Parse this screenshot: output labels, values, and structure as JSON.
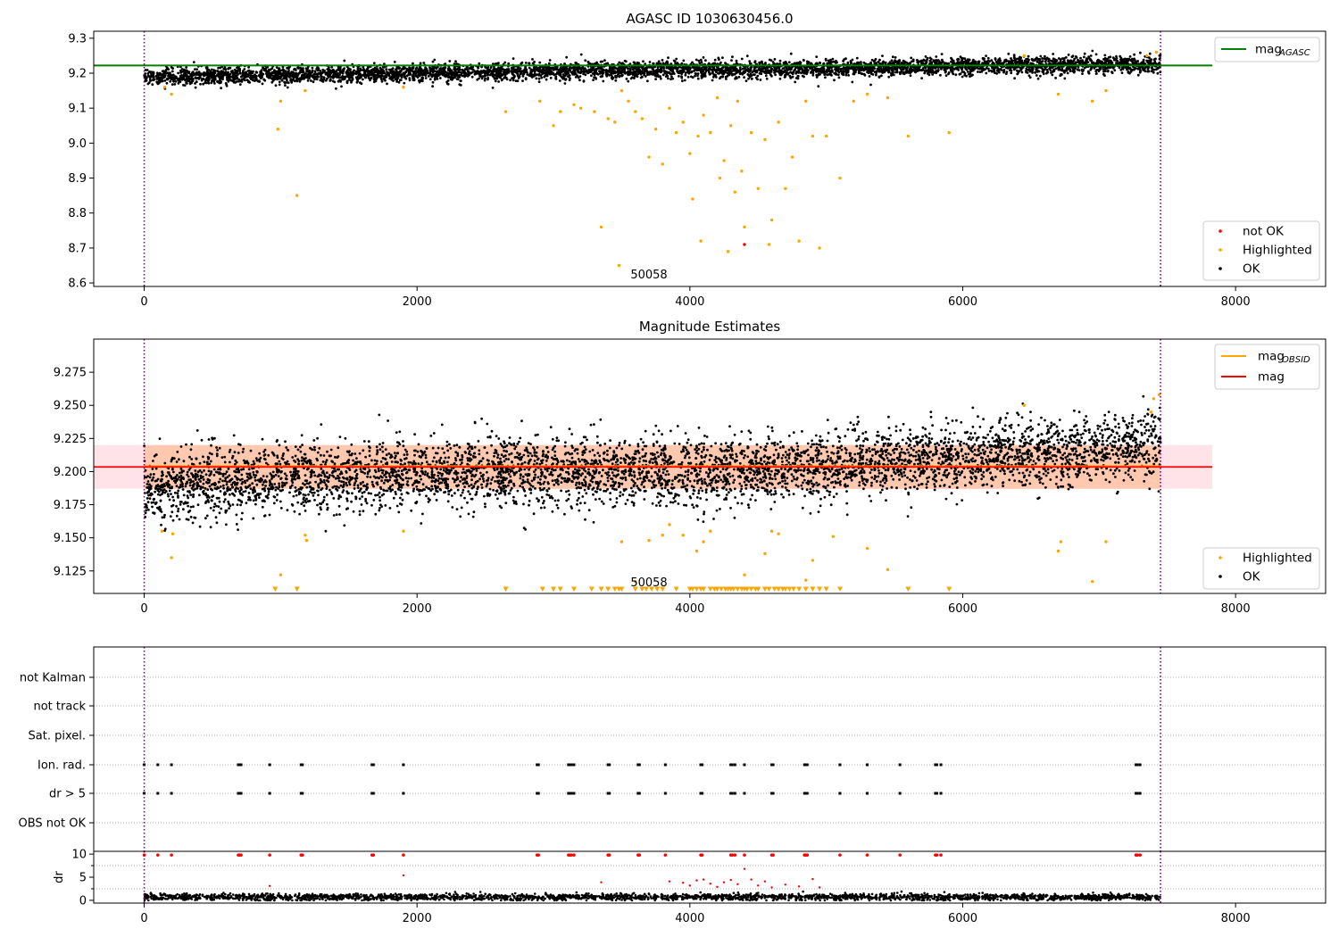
{
  "chart_data": [
    {
      "type": "scatter",
      "title": "AGASC ID 1030630456.0",
      "xlim": [
        -370,
        8660
      ],
      "ylim": [
        8.59,
        9.32
      ],
      "xticks": [
        "0",
        "2000",
        "4000",
        "6000",
        "8000"
      ],
      "yticks": [
        "8.6",
        "8.7",
        "8.8",
        "8.9",
        "9.0",
        "9.1",
        "9.2",
        "9.3"
      ],
      "reference_line": {
        "name": "mag_AGASC",
        "value": 9.222,
        "color": "#008000"
      },
      "vlines": [
        0,
        7450
      ],
      "annotation": "50058",
      "annotation_x": 3700,
      "legend": {
        "top_right": [
          {
            "label": "mag",
            "sub": "AGASC",
            "color": "#008000",
            "kind": "line"
          }
        ],
        "bottom_right": [
          {
            "label": "not OK",
            "color": "#ff0000",
            "kind": "dot"
          },
          {
            "label": "Highlighted",
            "color": "#ffa500",
            "kind": "dot"
          },
          {
            "label": "OK",
            "color": "#000000",
            "kind": "dot"
          }
        ]
      },
      "series": [
        {
          "name": "OK",
          "color": "#000000",
          "x_range": [
            0,
            7450
          ],
          "y_trend": [
            [
              0,
              9.188
            ],
            [
              1000,
              9.195
            ],
            [
              2000,
              9.2
            ],
            [
              3000,
              9.208
            ],
            [
              4000,
              9.21
            ],
            [
              5000,
              9.213
            ],
            [
              6000,
              9.22
            ],
            [
              7000,
              9.225
            ],
            [
              7450,
              9.225
            ]
          ],
          "scatter": 0.012
        },
        {
          "name": "Highlighted",
          "color": "#ffa500",
          "points": [
            [
              150,
              9.16
            ],
            [
              200,
              9.14
            ],
            [
              980,
              9.04
            ],
            [
              1000,
              9.12
            ],
            [
              1120,
              8.85
            ],
            [
              1180,
              9.15
            ],
            [
              1900,
              9.16
            ],
            [
              2650,
              9.09
            ],
            [
              2900,
              9.12
            ],
            [
              3000,
              9.05
            ],
            [
              3050,
              9.09
            ],
            [
              3150,
              9.11
            ],
            [
              3200,
              9.1
            ],
            [
              3300,
              9.09
            ],
            [
              3350,
              8.76
            ],
            [
              3400,
              9.07
            ],
            [
              3450,
              9.06
            ],
            [
              3480,
              8.65
            ],
            [
              3500,
              9.15
            ],
            [
              3550,
              9.12
            ],
            [
              3600,
              9.09
            ],
            [
              3650,
              9.07
            ],
            [
              3700,
              8.96
            ],
            [
              3750,
              9.04
            ],
            [
              3800,
              8.94
            ],
            [
              3850,
              9.1
            ],
            [
              3900,
              9.03
            ],
            [
              3950,
              9.06
            ],
            [
              4000,
              8.97
            ],
            [
              4020,
              8.84
            ],
            [
              4060,
              9.02
            ],
            [
              4080,
              8.72
            ],
            [
              4100,
              9.08
            ],
            [
              4150,
              9.03
            ],
            [
              4200,
              9.13
            ],
            [
              4220,
              8.9
            ],
            [
              4250,
              8.95
            ],
            [
              4280,
              8.69
            ],
            [
              4300,
              9.05
            ],
            [
              4330,
              8.86
            ],
            [
              4350,
              9.12
            ],
            [
              4380,
              8.92
            ],
            [
              4400,
              8.76
            ],
            [
              4450,
              9.03
            ],
            [
              4500,
              8.87
            ],
            [
              4550,
              9.01
            ],
            [
              4580,
              8.71
            ],
            [
              4600,
              8.78
            ],
            [
              4650,
              9.06
            ],
            [
              4700,
              8.87
            ],
            [
              4750,
              8.96
            ],
            [
              4800,
              8.72
            ],
            [
              4850,
              9.12
            ],
            [
              4900,
              9.02
            ],
            [
              4950,
              8.7
            ],
            [
              5000,
              9.02
            ],
            [
              5100,
              8.9
            ],
            [
              5200,
              9.12
            ],
            [
              5300,
              9.14
            ],
            [
              5450,
              9.13
            ],
            [
              5600,
              9.02
            ],
            [
              5900,
              9.03
            ],
            [
              6450,
              9.25
            ],
            [
              6700,
              9.14
            ],
            [
              6950,
              9.12
            ],
            [
              7050,
              9.15
            ],
            [
              7350,
              9.25
            ],
            [
              7420,
              9.26
            ]
          ]
        },
        {
          "name": "not OK",
          "color": "#ff0000",
          "points": [
            [
              4400,
              8.71
            ]
          ]
        }
      ]
    },
    {
      "type": "scatter",
      "title": "Magnitude Estimates",
      "xlim": [
        -370,
        8660
      ],
      "ylim": [
        9.108,
        9.3
      ],
      "xticks": [
        "0",
        "2000",
        "4000",
        "6000",
        "8000"
      ],
      "yticks": [
        "9.125",
        "9.150",
        "9.175",
        "9.200",
        "9.225",
        "9.250",
        "9.275"
      ],
      "reference_lines": [
        {
          "name": "mag_OBSID",
          "value": 9.204,
          "color": "#ffa500"
        },
        {
          "name": "mag",
          "value": 9.2035,
          "color": "#ff0000"
        }
      ],
      "bands": [
        {
          "from": 9.187,
          "to": 9.22,
          "color": "#ffc0cb",
          "x_range": [
            -370,
            7830
          ]
        },
        {
          "from": 9.187,
          "to": 9.22,
          "color": "#ffb380",
          "x_range": [
            0,
            7450
          ]
        }
      ],
      "vlines": [
        0,
        7450
      ],
      "annotation": "50058",
      "annotation_x": 3700,
      "clipped_marker_y": 9.111,
      "legend": {
        "top_right": [
          {
            "label": "mag",
            "sub": "OBSID",
            "color": "#ffa500",
            "kind": "line"
          },
          {
            "label": "mag",
            "sub": "",
            "color": "#ff0000",
            "kind": "line"
          }
        ],
        "bottom_right": [
          {
            "label": "Highlighted",
            "color": "#ffa500",
            "kind": "dot"
          },
          {
            "label": "OK",
            "color": "#000000",
            "kind": "dot"
          }
        ]
      },
      "series": [
        {
          "name": "OK",
          "color": "#000000",
          "x_range": [
            0,
            7450
          ],
          "y_trend": [
            [
              0,
              9.188
            ],
            [
              1000,
              9.195
            ],
            [
              2000,
              9.2
            ],
            [
              3000,
              9.2
            ],
            [
              4000,
              9.2
            ],
            [
              5000,
              9.205
            ],
            [
              6000,
              9.212
            ],
            [
              7000,
              9.215
            ],
            [
              7450,
              9.222
            ]
          ],
          "scatter": 0.013
        },
        {
          "name": "Highlighted",
          "color": "#ffa500",
          "points": [
            [
              130,
              9.155
            ],
            [
              200,
              9.135
            ],
            [
              210,
              9.153
            ],
            [
              1000,
              9.122
            ],
            [
              1180,
              9.152
            ],
            [
              1190,
              9.148
            ],
            [
              1900,
              9.155
            ],
            [
              3500,
              9.147
            ],
            [
              3600,
              9.117
            ],
            [
              3700,
              9.148
            ],
            [
              3800,
              9.152
            ],
            [
              3850,
              9.16
            ],
            [
              3950,
              9.152
            ],
            [
              4050,
              9.14
            ],
            [
              4100,
              9.147
            ],
            [
              4150,
              9.155
            ],
            [
              4400,
              9.122
            ],
            [
              4550,
              9.138
            ],
            [
              4600,
              9.155
            ],
            [
              4650,
              9.153
            ],
            [
              4850,
              9.118
            ],
            [
              4900,
              9.133
            ],
            [
              5050,
              9.151
            ],
            [
              5300,
              9.142
            ],
            [
              5450,
              9.126
            ],
            [
              6450,
              9.25
            ],
            [
              6700,
              9.14
            ],
            [
              6720,
              9.147
            ],
            [
              6950,
              9.117
            ],
            [
              7050,
              9.147
            ],
            [
              7380,
              9.245
            ],
            [
              7400,
              9.255
            ],
            [
              7440,
              9.258
            ]
          ]
        },
        {
          "name": "Highlighted (below range)",
          "color": "#ffa500",
          "x": [
            960,
            1120,
            2650,
            2920,
            3000,
            3050,
            3150,
            3280,
            3350,
            3400,
            3450,
            3480,
            3500,
            3600,
            3650,
            3680,
            3720,
            3760,
            3800,
            3900,
            4000,
            4020,
            4050,
            4080,
            4100,
            4150,
            4180,
            4200,
            4230,
            4260,
            4280,
            4300,
            4320,
            4350,
            4380,
            4400,
            4420,
            4450,
            4480,
            4500,
            4550,
            4580,
            4620,
            4650,
            4680,
            4700,
            4730,
            4760,
            4800,
            4850,
            4900,
            4950,
            5000,
            5100,
            5600,
            5900
          ]
        }
      ]
    },
    {
      "type": "scatter",
      "title": "",
      "xlim": [
        -370,
        8660
      ],
      "xticks": [
        "0",
        "2000",
        "4000",
        "6000",
        "8000"
      ],
      "categories": [
        "not Kalman",
        "not track",
        "Sat. pixel.",
        "Ion. rad.",
        "dr > 5",
        "OBS not OK"
      ],
      "flag_x": [
        0,
        100,
        200,
        690,
        700,
        710,
        920,
        1150,
        1160,
        1670,
        1680,
        1900,
        2880,
        2890,
        3110,
        3120,
        3130,
        3150,
        3400,
        3410,
        3620,
        3630,
        3820,
        4080,
        4090,
        4300,
        4310,
        4330,
        4400,
        4600,
        4610,
        4840,
        4850,
        4860,
        5100,
        5300,
        5540,
        5800,
        5810,
        5840,
        7270,
        7280,
        7300
      ],
      "flags": {
        "not Kalman": false,
        "not track": false,
        "Sat. pixel.": false,
        "Ion. rad.": true,
        "dr > 5": true,
        "OBS not OK": false
      },
      "vlines": [
        0,
        7450
      ]
    },
    {
      "type": "scatter",
      "title": "",
      "ylabel": "dr",
      "xlim": [
        -370,
        8660
      ],
      "ylim": [
        -0.6,
        10.6
      ],
      "xticks": [
        "0",
        "2000",
        "4000",
        "6000",
        "8000"
      ],
      "yticks": [
        "0",
        "5",
        "10"
      ],
      "vlines": [
        0,
        7450
      ],
      "series": [
        {
          "name": "OK",
          "color": "#000000",
          "x_range": [
            0,
            7450
          ],
          "y_trend": [
            [
              0,
              0.7
            ],
            [
              7450,
              0.7
            ]
          ],
          "scatter": 0.35
        },
        {
          "name": "dr > 5",
          "color": "#ff0000",
          "clipped_y": 9.8,
          "points": [
            [
              920,
              3.1
            ],
            [
              1900,
              5.4
            ],
            [
              3350,
              3.9
            ],
            [
              3850,
              4.1
            ],
            [
              3950,
              3.8
            ],
            [
              4000,
              3.2
            ],
            [
              4050,
              4.3
            ],
            [
              4100,
              4.5
            ],
            [
              4150,
              3.6
            ],
            [
              4200,
              2.9
            ],
            [
              4250,
              3.9
            ],
            [
              4300,
              4.4
            ],
            [
              4350,
              3.5
            ],
            [
              4400,
              6.8
            ],
            [
              4450,
              4.5
            ],
            [
              4500,
              3.2
            ],
            [
              4550,
              4.1
            ],
            [
              4600,
              2.8
            ],
            [
              4700,
              3.4
            ],
            [
              4800,
              3.0
            ],
            [
              4900,
              4.6
            ],
            [
              4950,
              2.8
            ]
          ]
        }
      ]
    }
  ]
}
